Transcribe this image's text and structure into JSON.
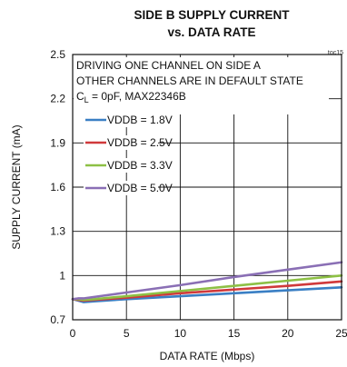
{
  "chart_data": {
    "type": "line",
    "title_line1": "SIDE B SUPPLY CURRENT",
    "title_line2": "vs. DATA RATE",
    "tag": "toc15",
    "xlabel": "DATA RATE (Mbps)",
    "ylabel": "SUPPLY CURRENT (mA)",
    "xlim": [
      0,
      25
    ],
    "ylim": [
      0.7,
      2.5
    ],
    "xticks": [
      0,
      5,
      10,
      15,
      20,
      25
    ],
    "yticks": [
      0.7,
      1,
      1.3,
      1.6,
      1.9,
      2.2,
      2.5
    ],
    "xtick_labels": [
      "0",
      "5",
      "10",
      "15",
      "20",
      "25"
    ],
    "ytick_labels": [
      "0.7",
      "1",
      "1.3",
      "1.6",
      "1.9",
      "2.2",
      "2.5"
    ],
    "grid": true,
    "annotation": {
      "line1": "DRIVING ONE CHANNEL ON SIDE A",
      "line2": "OTHER CHANNELS ARE IN DEFAULT STATE",
      "line3_prefix": "C",
      "line3_sub": "L",
      "line3_rest": " = 0pF, MAX22346B"
    },
    "legend_position": "top-left",
    "series": [
      {
        "name": "VDDB = 1.8V",
        "color": "#3a7fc4",
        "x": [
          0,
          0.5,
          1,
          2,
          5,
          10,
          15,
          20,
          25
        ],
        "y": [
          0.84,
          0.83,
          0.82,
          0.825,
          0.84,
          0.86,
          0.88,
          0.9,
          0.92
        ]
      },
      {
        "name": "VDDB = 2.5V",
        "color": "#d0393b",
        "x": [
          0,
          0.5,
          1,
          2,
          5,
          10,
          15,
          20,
          25
        ],
        "y": [
          0.84,
          0.835,
          0.83,
          0.835,
          0.85,
          0.88,
          0.905,
          0.93,
          0.96
        ]
      },
      {
        "name": "VDDB = 3.3V",
        "color": "#8dc045",
        "x": [
          0,
          0.5,
          1,
          2,
          5,
          10,
          15,
          20,
          25
        ],
        "y": [
          0.84,
          0.84,
          0.835,
          0.84,
          0.86,
          0.895,
          0.93,
          0.965,
          1.0
        ]
      },
      {
        "name": "VDDB = 5.0V",
        "color": "#8a6fb5",
        "x": [
          0,
          0.5,
          1,
          2,
          5,
          10,
          15,
          20,
          25
        ],
        "y": [
          0.84,
          0.845,
          0.845,
          0.855,
          0.885,
          0.935,
          0.99,
          1.04,
          1.09
        ]
      }
    ]
  }
}
